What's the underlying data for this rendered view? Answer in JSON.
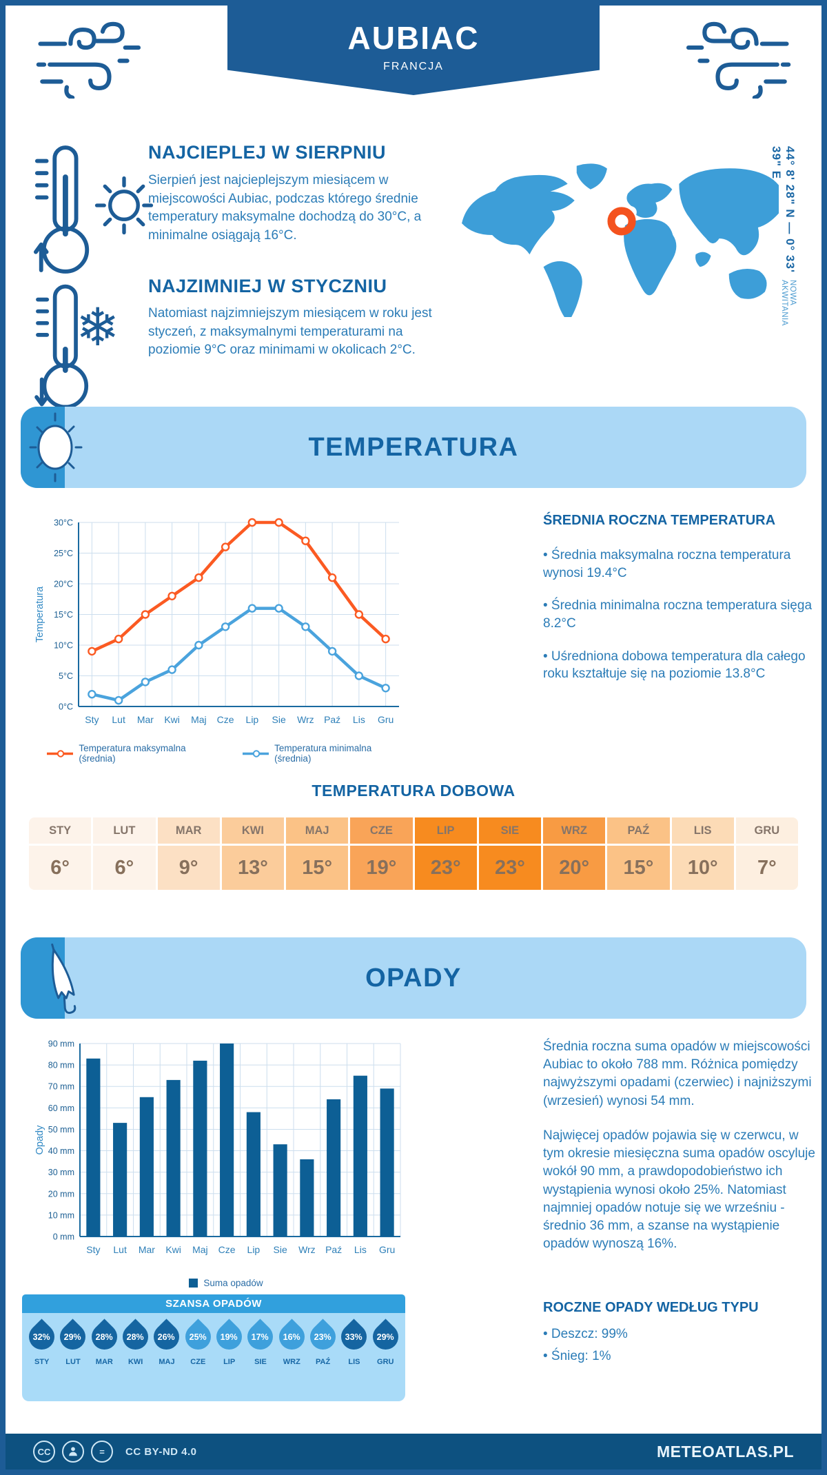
{
  "header": {
    "title": "AUBIAC",
    "subtitle": "FRANCJA"
  },
  "location": {
    "coordinates": "44° 8' 28\" N — 0° 33' 39\" E",
    "region": "NOWA AKWITANIA"
  },
  "highlights": [
    {
      "title": "NAJCIEPLEJ W SIERPNIU",
      "text": "Sierpień jest najcieplejszym miesiącem w miejscowości Aubiac, podczas którego średnie temperatury maksymalne dochodzą do 30°C, a minimalne osiągają 16°C."
    },
    {
      "title": "NAJZIMNIEJ W STYCZNIU",
      "text": "Natomiast najzimniejszym miesiącem w roku jest styczeń, z maksymalnymi temperaturami na poziomie 9°C oraz minimami w okolicach 2°C."
    }
  ],
  "temperature_section": {
    "title": "TEMPERATURA",
    "annual": {
      "heading": "ŚREDNIA ROCZNA TEMPERATURA",
      "bullets": [
        "• Średnia maksymalna roczna temperatura wynosi 19.4°C",
        "• Średnia minimalna roczna temperatura sięga 8.2°C",
        "• Uśredniona dobowa temperatura dla całego roku kształtuje się na poziomie 13.8°C"
      ]
    },
    "daily": {
      "heading": "TEMPERATURA DOBOWA",
      "months": [
        "STY",
        "LUT",
        "MAR",
        "KWI",
        "MAJ",
        "CZE",
        "LIP",
        "SIE",
        "WRZ",
        "PAŹ",
        "LIS",
        "GRU"
      ],
      "values": [
        "6°",
        "6°",
        "9°",
        "13°",
        "15°",
        "19°",
        "23°",
        "23°",
        "20°",
        "15°",
        "10°",
        "7°"
      ],
      "cell_colors": [
        "#fdf3ea",
        "#fdf3ea",
        "#fce0c4",
        "#fbcc9b",
        "#fbc286",
        "#f9a458",
        "#f78b1f",
        "#f78b1f",
        "#f89b43",
        "#fbc286",
        "#fcdbb6",
        "#fdefe0"
      ]
    }
  },
  "precipitation_section": {
    "title": "OPADY",
    "summary": [
      "Średnia roczna suma opadów w miejscowości Aubiac to około 788 mm. Różnica pomiędzy najwyższymi opadami (czerwiec) i najniższymi (wrzesień) wynosi 54 mm.",
      "Najwięcej opadów pojawia się w czerwcu, w tym okresie miesięczna suma opadów oscyluje wokół 90 mm, a prawdopodobieństwo ich wystąpienia wynosi około 25%. Natomiast najmniej opadów notuje się we wrześniu - średnio 36 mm, a szanse na wystąpienie opadów wynoszą 16%."
    ],
    "chance": {
      "heading": "SZANSA OPADÓW",
      "months": [
        "STY",
        "LUT",
        "MAR",
        "KWI",
        "MAJ",
        "CZE",
        "LIP",
        "SIE",
        "WRZ",
        "PAŹ",
        "LIS",
        "GRU"
      ],
      "values": [
        "32%",
        "29%",
        "28%",
        "28%",
        "26%",
        "25%",
        "19%",
        "17%",
        "16%",
        "23%",
        "33%",
        "29%"
      ],
      "dark": [
        true,
        true,
        true,
        true,
        true,
        false,
        false,
        false,
        false,
        false,
        true,
        true
      ],
      "drop_dark_color": "#1565a1",
      "drop_light_color": "#3ea0dc"
    },
    "by_type": {
      "heading": "ROCZNE OPADY WEDŁUG TYPU",
      "bullets": [
        "• Deszcz: 99%",
        "• Śnieg: 1%"
      ]
    }
  },
  "chart_data": [
    {
      "type": "line",
      "categories": [
        "Sty",
        "Lut",
        "Mar",
        "Kwi",
        "Maj",
        "Cze",
        "Lip",
        "Sie",
        "Wrz",
        "Paź",
        "Lis",
        "Gru"
      ],
      "series": [
        {
          "name": "Temperatura maksymalna (średnia)",
          "color": "#fb5a22",
          "values": [
            9,
            11,
            15,
            18,
            21,
            26,
            30,
            30,
            27,
            21,
            15,
            11
          ]
        },
        {
          "name": "Temperatura minimalna (średnia)",
          "color": "#4aa3dd",
          "values": [
            2,
            1,
            4,
            6,
            10,
            13,
            16,
            16,
            13,
            9,
            5,
            3
          ]
        }
      ],
      "ylabel": "Temperatura",
      "ylim": [
        0,
        30
      ],
      "ytick_step": 5,
      "ytick_suffix": "°C",
      "grid": true,
      "legend_position": "bottom"
    },
    {
      "type": "bar",
      "categories": [
        "Sty",
        "Lut",
        "Mar",
        "Kwi",
        "Maj",
        "Cze",
        "Lip",
        "Sie",
        "Wrz",
        "Paź",
        "Lis",
        "Gru"
      ],
      "series": [
        {
          "name": "Suma opadów",
          "color": "#0d5f95",
          "values": [
            83,
            53,
            65,
            73,
            82,
            90,
            58,
            43,
            36,
            64,
            75,
            69
          ]
        }
      ],
      "ylabel": "Opady",
      "ylim": [
        0,
        90
      ],
      "ytick_step": 10,
      "ytick_suffix": " mm",
      "grid": true,
      "legend_position": "bottom"
    }
  ],
  "icons": {
    "snowflake_glyph": "❄"
  },
  "colors": {
    "primary": "#1d5c96",
    "panel_light": "#abd8f6",
    "panel_accent": "#2f96d3",
    "heading": "#1464a3",
    "body_text": "#2b7cb7",
    "map_fill": "#3d9ed8",
    "marker_orange": "#f4521e",
    "footer_bg": "#0d5180"
  },
  "footer": {
    "license": "CC BY-ND 4.0",
    "site": "METEOATLAS.PL"
  }
}
